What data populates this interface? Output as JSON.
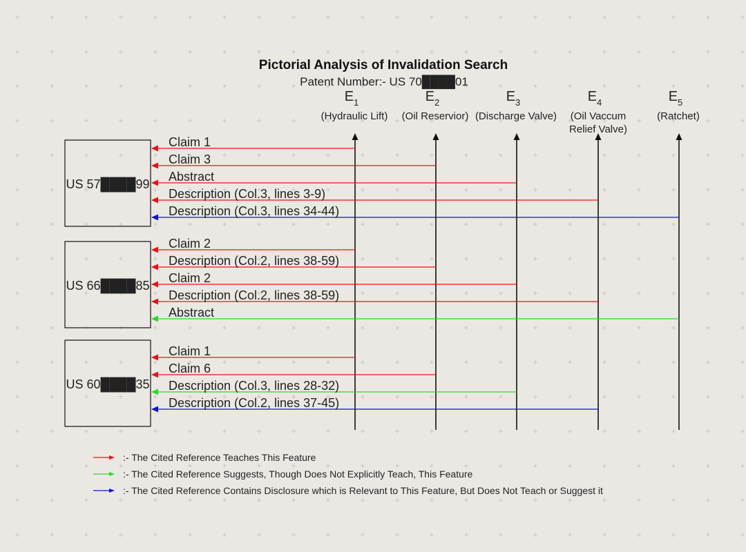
{
  "header": {
    "title": "Pictorial Analysis of Invalidation Search",
    "subtitle": "Patent Number:- US 70████01"
  },
  "colors": {
    "teaches": "#ee1111",
    "suggests": "#22dd22",
    "relevant": "#1111dd",
    "line": "#111111",
    "background": "#ebe8e4"
  },
  "elements": [
    {
      "id": "E1",
      "letter": "E",
      "index": "1",
      "name": [
        "(Hydraulic Lift)"
      ]
    },
    {
      "id": "E2",
      "letter": "E",
      "index": "2",
      "name": [
        "(Oil Reservior)"
      ]
    },
    {
      "id": "E3",
      "letter": "E",
      "index": "3",
      "name": [
        "(Discharge Valve)"
      ]
    },
    {
      "id": "E4",
      "letter": "E",
      "index": "4",
      "name": [
        "(Oil Vaccum",
        "Relief Valve)"
      ]
    },
    {
      "id": "E5",
      "letter": "E",
      "index": "5",
      "name": [
        "(Ratchet)"
      ]
    }
  ],
  "references": [
    {
      "label": "US 57████99",
      "citations": [
        {
          "text": "Claim 1",
          "element": "E1",
          "type": "teaches"
        },
        {
          "text": "Claim 3",
          "element": "E2",
          "type": "teaches"
        },
        {
          "text": "Abstract",
          "element": "E3",
          "type": "teaches"
        },
        {
          "text": "Description (Col.3, lines 3-9)",
          "element": "E4",
          "type": "teaches"
        },
        {
          "text": "Description (Col.3, lines 34-44)",
          "element": "E5",
          "type": "relevant"
        }
      ]
    },
    {
      "label": "US 66████85",
      "citations": [
        {
          "text": "Claim 2",
          "element": "E1",
          "type": "teaches"
        },
        {
          "text": "Description (Col.2, lines 38-59)",
          "element": "E2",
          "type": "teaches"
        },
        {
          "text": "Claim 2",
          "element": "E3",
          "type": "teaches"
        },
        {
          "text": "Description (Col.2, lines 38-59)",
          "element": "E4",
          "type": "teaches"
        },
        {
          "text": "Abstract",
          "element": "E5",
          "type": "suggests"
        }
      ]
    },
    {
      "label": "US 60████35",
      "citations": [
        {
          "text": "Claim 1",
          "element": "E1",
          "type": "teaches"
        },
        {
          "text": "Claim 6",
          "element": "E2",
          "type": "teaches"
        },
        {
          "text": "Description (Col.3, lines 28-32)",
          "element": "E3",
          "type": "suggests"
        },
        {
          "text": "Description (Col.2, lines 37-45)",
          "element": "E4",
          "type": "relevant"
        }
      ]
    }
  ],
  "legend": [
    {
      "type": "teaches",
      "text": ":- The Cited Reference Teaches This Feature"
    },
    {
      "type": "suggests",
      "text": ":- The Cited Reference Suggests, Though Does Not Explicitly Teach, This Feature"
    },
    {
      "type": "relevant",
      "text": ":- The Cited Reference Contains Disclosure which is Relevant to This Feature, But Does Not Teach or Suggest it"
    }
  ]
}
